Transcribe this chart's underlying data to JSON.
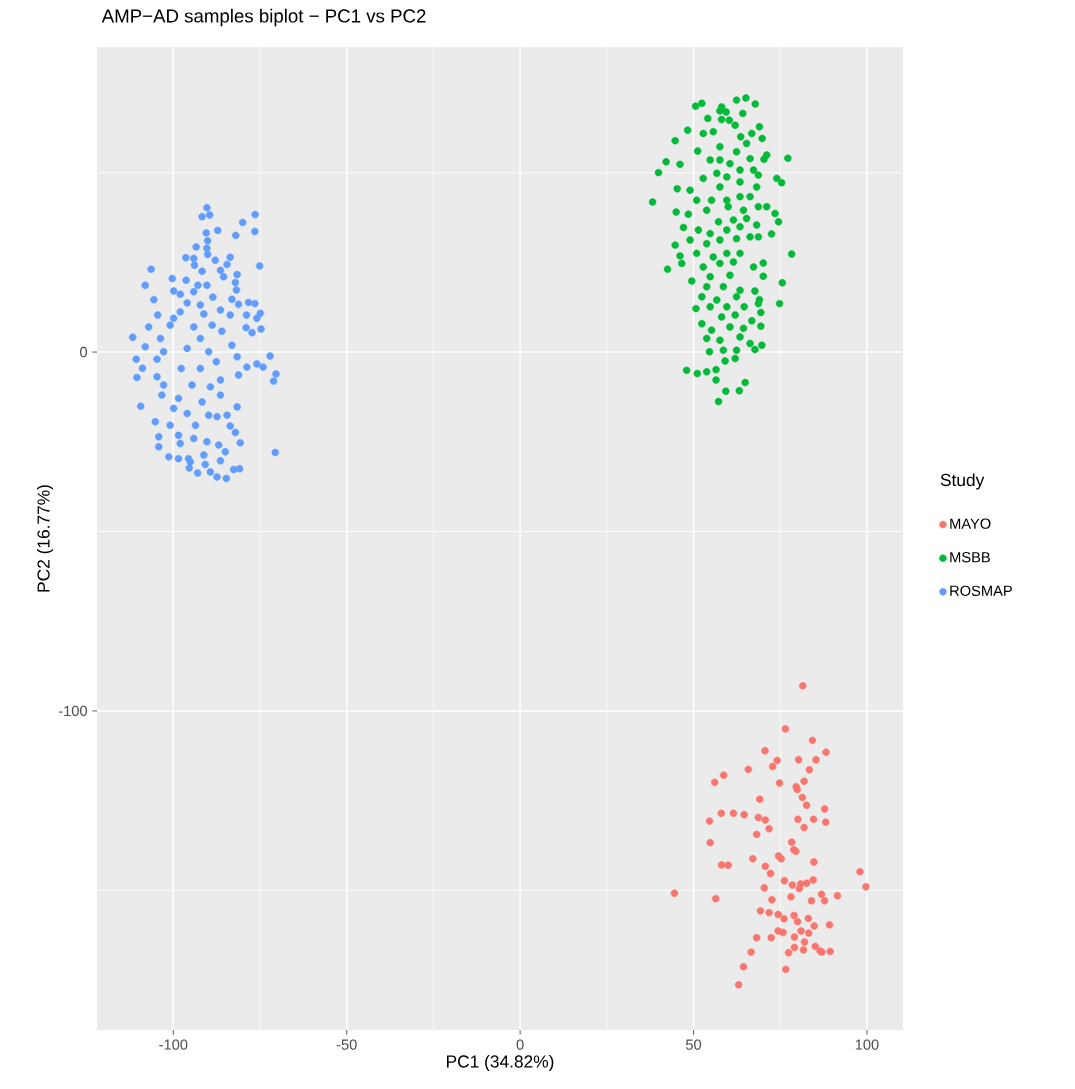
{
  "chart_data": {
    "type": "scatter",
    "title": "AMP−AD samples biplot − PC1 vs PC2",
    "xlabel": "PC1 (34.82%)",
    "ylabel": "PC2 (16.77%)",
    "legend_title": "Study",
    "legend": "right",
    "grid": true,
    "marker": "circle",
    "xlim": [
      -122,
      110.4
    ],
    "ylim": [
      -188.9,
      85
    ],
    "xticks": [
      -100,
      {
        "value": -75,
        "label": null
      },
      -50,
      {
        "value": -25,
        "label": null
      },
      0,
      {
        "value": 25,
        "label": null
      },
      50,
      {
        "value": 75,
        "label": null
      },
      100
    ],
    "yticks": [
      {
        "value": -150,
        "label": null
      },
      -100,
      {
        "value": -50,
        "label": null
      },
      0,
      {
        "value": 50,
        "label": null
      }
    ],
    "series": [
      {
        "name": "MAYO",
        "color": "#f8766d",
        "x": [
          81.5,
          76.5,
          84.3,
          70.6,
          88.2,
          74.1,
          80.3,
          85.3,
          72.8,
          65.8,
          83.4,
          58.7,
          56.1,
          74.8,
          81.9,
          79.6,
          79.9,
          81.4,
          69.1,
          82.6,
          87.8,
          58.0,
          61.5,
          64.6,
          54.6,
          68.7,
          70.7,
          80.1,
          84.6,
          88.1,
          71.8,
          81.9,
          68.2,
          54.8,
          78.3,
          78.9,
          79.5,
          74.5,
          75.3,
          67.1,
          84.7,
          58.1,
          60.0,
          70.7,
          72.2,
          98.0,
          76.2,
          78.5,
          80.9,
          82.6,
          84.5,
          80.5,
          70.4,
          99.7,
          44.5,
          56.4,
          72.6,
          78.1,
          84.0,
          86.9,
          87.8,
          91.5,
          69.3,
          71.8,
          74.4,
          76.1,
          79.0,
          80.0,
          83.1,
          84.8,
          89.2,
          74.4,
          75.8,
          81.0,
          83.2,
          68.2,
          72.4,
          79.1,
          82.0,
          85.1,
          86.5,
          87.0,
          89.4,
          79.1,
          81.7,
          77.4,
          66.6,
          64.4,
          76.6,
          63.0
        ],
        "values": [
          -93.0,
          -105.0,
          -108.2,
          -111.1,
          -111.5,
          -113.8,
          -113.6,
          -113.6,
          -115.5,
          -116.3,
          -116.4,
          -117.9,
          -119.9,
          -120.1,
          -119.6,
          -121.1,
          -121.9,
          -124.1,
          -124.6,
          -126.3,
          -127.3,
          -128.5,
          -128.5,
          -128.9,
          -130.7,
          -129.7,
          -130.4,
          -130.2,
          -130.2,
          -131.0,
          -132.8,
          -132.5,
          -134.4,
          -136.7,
          -136.6,
          -138.7,
          -139.1,
          -140.4,
          -141.2,
          -141.2,
          -142.1,
          -142.9,
          -143.0,
          -143.3,
          -145.3,
          -144.8,
          -147.3,
          -148.5,
          -148.2,
          -148.0,
          -147.1,
          -149.5,
          -149.3,
          -149.0,
          -150.8,
          -152.3,
          -152.6,
          -151.8,
          -152.9,
          -151.1,
          -152.9,
          -151.5,
          -155.7,
          -156.2,
          -156.7,
          -157.9,
          -157.0,
          -158.7,
          -157.8,
          -159.9,
          -159.6,
          -161.3,
          -161.7,
          -161.3,
          -161.9,
          -163.2,
          -163.2,
          -163.0,
          -164.4,
          -165.6,
          -166.9,
          -167.2,
          -167.0,
          -165.9,
          -166.6,
          -167.4,
          -167.2,
          -171.3,
          -172.0,
          -176.3
        ]
      },
      {
        "name": "MSBB",
        "color": "#00ba38",
        "x": [
          50.6,
          52.4,
          58.1,
          57.6,
          59.4,
          62.4,
          65.1,
          67.8,
          64.2,
          58.1,
          60.3,
          54.1,
          48.3,
          44.7,
          52.8,
          55.7,
          62.0,
          69.0,
          63.6,
          66.8,
          69.8,
          51.2,
          57.6,
          62.4,
          65.3,
          42.1,
          39.9,
          46.1,
          54.8,
          57.6,
          60.5,
          66.3,
          71.1,
          77.2,
          70.3,
          52.8,
          56.7,
          59.6,
          63.4,
          67.3,
          68.7,
          74.0,
          75.4,
          45.3,
          49.0,
          57.6,
          63.4,
          68.2,
          38.2,
          50.9,
          55.2,
          59.6,
          63.4,
          66.3,
          45.0,
          48.5,
          53.8,
          60.0,
          64.4,
          68.7,
          71.1,
          73.5,
          57.2,
          61.5,
          65.3,
          74.5,
          47.1,
          51.4,
          54.8,
          59.6,
          63.4,
          68.2,
          72.5,
          44.7,
          49.0,
          53.8,
          57.6,
          62.4,
          66.3,
          68.7,
          46.1,
          50.9,
          55.7,
          59.6,
          63.4,
          78.3,
          42.5,
          46.6,
          52.8,
          57.6,
          61.5,
          67.3,
          70.1,
          49.5,
          54.8,
          60.5,
          70.1,
          53.8,
          58.6,
          63.4,
          75.6,
          52.4,
          56.7,
          62.4,
          67.7,
          69.0,
          50.7,
          54.8,
          59.6,
          64.6,
          68.7,
          74.8,
          52.4,
          58.1,
          62.0,
          66.8,
          69.4,
          55.2,
          60.5,
          64.4,
          69.4,
          53.8,
          57.6,
          63.4,
          66.3,
          69.7,
          54.6,
          58.6,
          62.4,
          67.7,
          59.1,
          62.0,
          48.0,
          51.1,
          53.8,
          56.5,
          56.5,
          64.9,
          59.3,
          63.2,
          57.2
        ],
        "values": [
          68.5,
          69.3,
          68.3,
          67.2,
          66.9,
          70.2,
          70.8,
          69.1,
          66.5,
          64.8,
          64.6,
          65.1,
          61.8,
          58.9,
          60.9,
          61.4,
          63.2,
          62.8,
          60.0,
          60.9,
          59.5,
          56.0,
          57.2,
          55.8,
          58.1,
          53.0,
          50.0,
          52.3,
          53.5,
          53.5,
          52.5,
          53.9,
          54.9,
          54.0,
          53.7,
          48.4,
          49.8,
          48.8,
          50.7,
          50.7,
          49.3,
          48.4,
          47.2,
          45.5,
          45.1,
          46.0,
          47.4,
          46.0,
          41.8,
          42.3,
          42.3,
          42.3,
          43.3,
          43.3,
          39.0,
          38.4,
          39.5,
          40.5,
          39.5,
          40.5,
          40.5,
          38.6,
          36.3,
          36.8,
          37.2,
          36.3,
          34.7,
          34.0,
          33.0,
          34.0,
          34.9,
          35.4,
          32.9,
          29.8,
          31.2,
          30.2,
          31.2,
          31.6,
          32.1,
          32.1,
          26.8,
          27.5,
          26.5,
          27.5,
          27.5,
          27.3,
          23.1,
          24.7,
          23.7,
          24.7,
          25.1,
          23.7,
          24.8,
          19.8,
          21.0,
          21.4,
          21.1,
          18.2,
          18.2,
          17.2,
          19.3,
          15.4,
          14.5,
          15.4,
          17.0,
          14.6,
          12.1,
          12.6,
          12.6,
          12.6,
          13.5,
          13.5,
          7.9,
          9.8,
          10.3,
          8.7,
          11.0,
          6.1,
          7.0,
          6.6,
          7.2,
          3.8,
          3.3,
          4.2,
          2.4,
          1.9,
          0.1,
          0.5,
          0.5,
          0.7,
          -2.5,
          -1.8,
          -5.1,
          -6.0,
          -5.5,
          -4.9,
          -7.8,
          -8.5,
          -10.9,
          -10.8,
          -13.8
        ]
      },
      {
        "name": "ROSMAP",
        "color": "#619cff",
        "x": [
          -90.3,
          -91.7,
          -89.5,
          -76.4,
          -80.0,
          -87.2,
          -90.5,
          -82.0,
          -76.5,
          -90.1,
          -93.4,
          -90.3,
          -90.1,
          -96.4,
          -94.1,
          -87.9,
          -83.6,
          -93.9,
          -106.4,
          -91.7,
          -75.1,
          -84.5,
          -86.4,
          -81.6,
          -100.3,
          -96.3,
          -108.1,
          -92.9,
          -90.3,
          -85.5,
          -82.1,
          -81.8,
          -99.9,
          -98.0,
          -105.6,
          -94.1,
          -88.6,
          -83.1,
          -96.0,
          -78.3,
          -76.5,
          -92.2,
          -81.2,
          -104.5,
          -98.0,
          -99.9,
          -91.2,
          -86.4,
          -78.9,
          -83.6,
          -74.9,
          -75.9,
          -107.1,
          -100.9,
          -94.1,
          -88.8,
          -79.0,
          -77.3,
          -74.7,
          -111.7,
          -103.7,
          -92.2,
          -86.0,
          -83.1,
          -108.1,
          -96.0,
          -110.7,
          -102.8,
          -89.8,
          -104.7,
          -81.6,
          -72.1,
          -108.9,
          -97.7,
          -87.6,
          -78.8,
          -75.9,
          -74.1,
          -110.5,
          -104.7,
          -92.2,
          -86.4,
          -81.2,
          -70.4,
          -71.1,
          -102.8,
          -94.6,
          -89.3,
          -103.3,
          -98.5,
          -91.7,
          -86.4,
          -81.6,
          -109.4,
          -105.2,
          -99.9,
          -96.0,
          -89.8,
          -84.5,
          -100.9,
          -93.6,
          -87.4,
          -83.6,
          -104.2,
          -98.5,
          -94.1,
          -90.3,
          -82.1,
          -104.2,
          -98.0,
          -86.9,
          -80.7,
          -101.3,
          -95.6,
          -91.2,
          -85.0,
          -70.6,
          -98.5,
          -95.1,
          -90.8,
          -86.4,
          -95.4,
          -93.0,
          -89.3,
          -87.4,
          -84.7,
          -82.6,
          -80.9
        ],
        "values": [
          40.2,
          37.7,
          38.2,
          38.3,
          36.1,
          33.9,
          33.2,
          32.5,
          33.6,
          31.0,
          29.3,
          28.9,
          27.2,
          26.3,
          26.1,
          25.6,
          26.4,
          24.2,
          23.1,
          22.5,
          24.0,
          24.4,
          22.8,
          21.6,
          20.5,
          20.0,
          18.6,
          18.6,
          18.6,
          21.0,
          19.4,
          17.3,
          17.0,
          16.1,
          14.6,
          16.8,
          15.3,
          14.7,
          13.7,
          13.8,
          13.5,
          13.1,
          13.3,
          10.3,
          11.2,
          9.4,
          10.6,
          11.7,
          10.3,
          10.3,
          10.8,
          9.4,
          7.0,
          7.5,
          7.0,
          7.5,
          6.8,
          5.4,
          6.4,
          4.1,
          3.8,
          3.8,
          5.8,
          1.9,
          1.5,
          1.0,
          -2.0,
          0.1,
          0.1,
          -2.0,
          -1.3,
          -1.1,
          -4.5,
          -4.6,
          -2.7,
          -4.2,
          -3.3,
          -4.2,
          -7.1,
          -6.9,
          -4.6,
          -7.8,
          -6.4,
          -6.1,
          -8.1,
          -9.2,
          -9.2,
          -9.7,
          -12.0,
          -12.9,
          -13.9,
          -12.0,
          -15.3,
          -15.1,
          -19.4,
          -15.7,
          -17.1,
          -17.6,
          -17.6,
          -20.4,
          -20.4,
          -18.0,
          -20.6,
          -23.6,
          -23.2,
          -24.1,
          -25.0,
          -22.4,
          -26.4,
          -25.5,
          -25.9,
          -25.3,
          -29.2,
          -29.7,
          -28.7,
          -27.8,
          -28.0,
          -29.7,
          -30.6,
          -31.3,
          -30.3,
          -32.3,
          -33.7,
          -33.4,
          -34.8,
          -35.2,
          -32.7,
          -32.5
        ]
      }
    ]
  }
}
